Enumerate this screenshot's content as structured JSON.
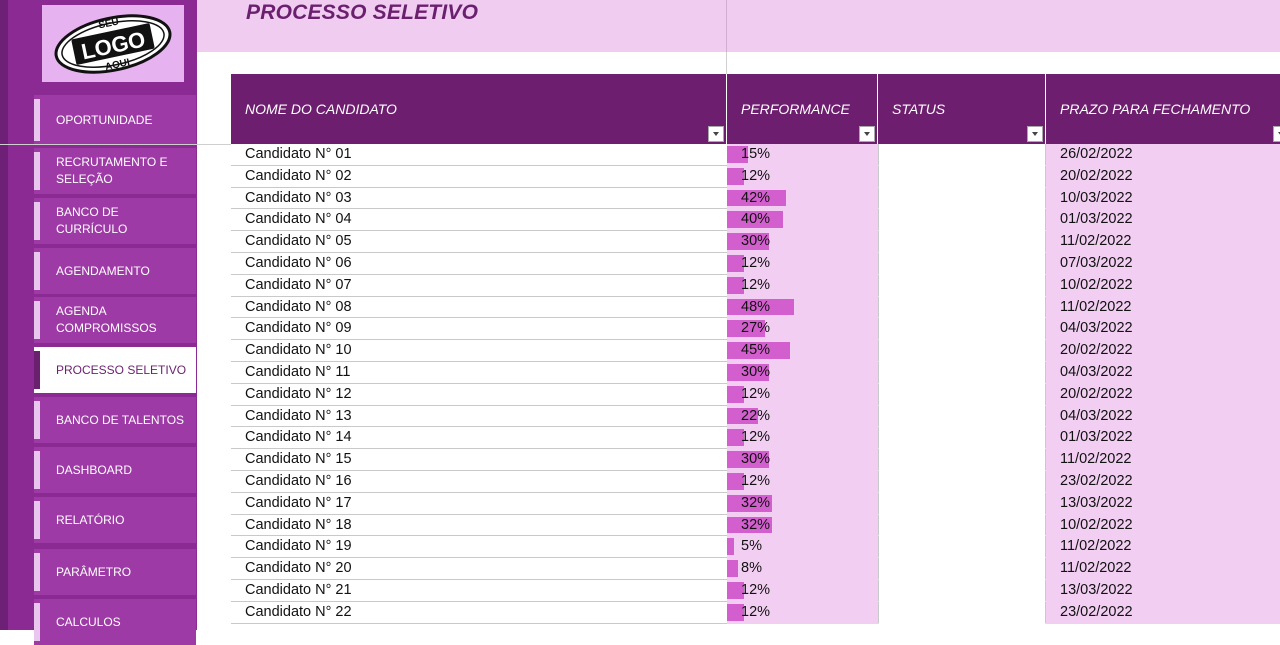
{
  "logo": {
    "line1": "SEU",
    "line2": "LOGO",
    "line3": "AQUI"
  },
  "sidebar": {
    "items": [
      {
        "label": "OPORTUNIDADE",
        "active": false
      },
      {
        "label": "RECRUTAMENTO E SELEÇÃO",
        "active": false
      },
      {
        "label": "BANCO DE CURRÍCULO",
        "active": false
      },
      {
        "label": "AGENDAMENTO",
        "active": false
      },
      {
        "label": "AGENDA COMPROMISSOS",
        "active": false
      },
      {
        "label": "PROCESSO SELETIVO",
        "active": true
      },
      {
        "label": "BANCO DE TALENTOS",
        "active": false
      },
      {
        "label": "DASHBOARD",
        "active": false
      },
      {
        "label": "RELATÓRIO",
        "active": false
      },
      {
        "label": "PARÂMETRO",
        "active": false
      },
      {
        "label": "CALCULOS",
        "active": false
      }
    ]
  },
  "header": {
    "title": "PROCESSO SELETIVO"
  },
  "table": {
    "columns": [
      {
        "label": "NOME DO CANDIDATO"
      },
      {
        "label": "PERFORMANCE"
      },
      {
        "label": "STATUS"
      },
      {
        "label": "PRAZO PARA FECHAMENTO"
      }
    ],
    "rows": [
      {
        "name": "Candidato N° 01",
        "performance": "15%",
        "performance_value": 0.15,
        "status": "",
        "deadline": "26/02/2022"
      },
      {
        "name": "Candidato N° 02",
        "performance": "12%",
        "performance_value": 0.12,
        "status": "",
        "deadline": "20/02/2022"
      },
      {
        "name": "Candidato N° 03",
        "performance": "42%",
        "performance_value": 0.42,
        "status": "",
        "deadline": "10/03/2022"
      },
      {
        "name": "Candidato N° 04",
        "performance": "40%",
        "performance_value": 0.4,
        "status": "",
        "deadline": "01/03/2022"
      },
      {
        "name": "Candidato N° 05",
        "performance": "30%",
        "performance_value": 0.3,
        "status": "",
        "deadline": "11/02/2022"
      },
      {
        "name": "Candidato N° 06",
        "performance": "12%",
        "performance_value": 0.12,
        "status": "",
        "deadline": "07/03/2022"
      },
      {
        "name": "Candidato N° 07",
        "performance": "12%",
        "performance_value": 0.12,
        "status": "",
        "deadline": "10/02/2022"
      },
      {
        "name": "Candidato N° 08",
        "performance": "48%",
        "performance_value": 0.48,
        "status": "",
        "deadline": "11/02/2022"
      },
      {
        "name": "Candidato N° 09",
        "performance": "27%",
        "performance_value": 0.27,
        "status": "",
        "deadline": "04/03/2022"
      },
      {
        "name": "Candidato N° 10",
        "performance": "45%",
        "performance_value": 0.45,
        "status": "",
        "deadline": "20/02/2022"
      },
      {
        "name": "Candidato N° 11",
        "performance": "30%",
        "performance_value": 0.3,
        "status": "",
        "deadline": "04/03/2022"
      },
      {
        "name": "Candidato N° 12",
        "performance": "12%",
        "performance_value": 0.12,
        "status": "",
        "deadline": "20/02/2022"
      },
      {
        "name": "Candidato N° 13",
        "performance": "22%",
        "performance_value": 0.22,
        "status": "",
        "deadline": "04/03/2022"
      },
      {
        "name": "Candidato N° 14",
        "performance": "12%",
        "performance_value": 0.12,
        "status": "",
        "deadline": "01/03/2022"
      },
      {
        "name": "Candidato N° 15",
        "performance": "30%",
        "performance_value": 0.3,
        "status": "",
        "deadline": "11/02/2022"
      },
      {
        "name": "Candidato N° 16",
        "performance": "12%",
        "performance_value": 0.12,
        "status": "",
        "deadline": "23/02/2022"
      },
      {
        "name": "Candidato N° 17",
        "performance": "32%",
        "performance_value": 0.32,
        "status": "",
        "deadline": "13/03/2022"
      },
      {
        "name": "Candidato N° 18",
        "performance": "32%",
        "performance_value": 0.32,
        "status": "",
        "deadline": "10/02/2022"
      },
      {
        "name": "Candidato N° 19",
        "performance": "5%",
        "performance_value": 0.05,
        "status": "",
        "deadline": "11/02/2022"
      },
      {
        "name": "Candidato N° 20",
        "performance": "8%",
        "performance_value": 0.08,
        "status": "",
        "deadline": "11/02/2022"
      },
      {
        "name": "Candidato N° 21",
        "performance": "12%",
        "performance_value": 0.12,
        "status": "",
        "deadline": "13/03/2022"
      },
      {
        "name": "Candidato N° 22",
        "performance": "12%",
        "performance_value": 0.12,
        "status": "",
        "deadline": "23/02/2022"
      }
    ]
  },
  "colors": {
    "sidebar": "#8b2a93",
    "nav_item": "#9e3aa6",
    "header_band": "#f0cdf0",
    "table_header": "#6e1e6e",
    "performance_bar": "#d35fcf",
    "performance_bg": "#f2cff2",
    "title": "#6b1f6f"
  }
}
